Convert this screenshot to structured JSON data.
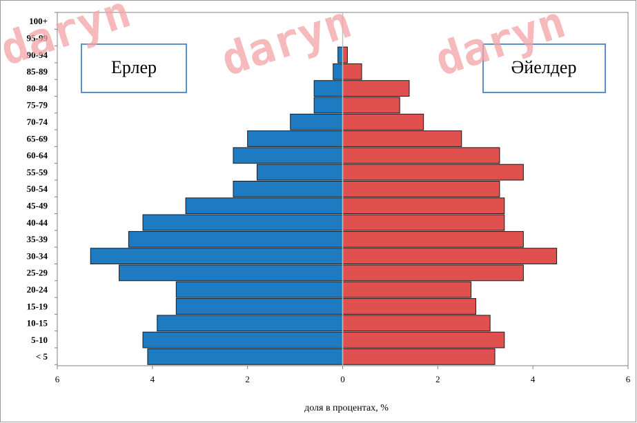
{
  "chart_data": {
    "type": "bar",
    "orientation": "horizontal",
    "categories": [
      "< 5",
      "5-10",
      "10-15",
      "15-19",
      "20-24",
      "25-29",
      "30-34",
      "35-39",
      "40-44",
      "45-49",
      "50-54",
      "55-59",
      "60-64",
      "65-69",
      "70-74",
      "75-79",
      "80-84",
      "85-89",
      "90-94",
      "95-99",
      "100+"
    ],
    "series": [
      {
        "name": "Ерлер",
        "color": "#1f7bc1",
        "values": [
          4.1,
          4.2,
          3.9,
          3.5,
          3.5,
          4.7,
          5.3,
          4.5,
          4.2,
          3.3,
          2.3,
          1.8,
          2.3,
          2.0,
          1.1,
          0.6,
          0.6,
          0.2,
          0.1,
          0.0,
          0.0
        ]
      },
      {
        "name": "Әйелдер",
        "color": "#e0504e",
        "values": [
          3.2,
          3.4,
          3.1,
          2.8,
          2.7,
          3.8,
          4.5,
          3.8,
          3.4,
          3.4,
          3.3,
          3.8,
          3.3,
          2.5,
          1.7,
          1.2,
          1.4,
          0.4,
          0.1,
          0.0,
          0.0
        ]
      }
    ],
    "xlabel": "доля в процентах, %",
    "xticks": [
      "6",
      "4",
      "2",
      "0",
      "2",
      "4",
      "6"
    ],
    "xlim": [
      -6,
      6
    ],
    "grid": false,
    "legend_boxes": [
      "Ерлер",
      "Әйелдер"
    ],
    "watermark": "daryn"
  }
}
